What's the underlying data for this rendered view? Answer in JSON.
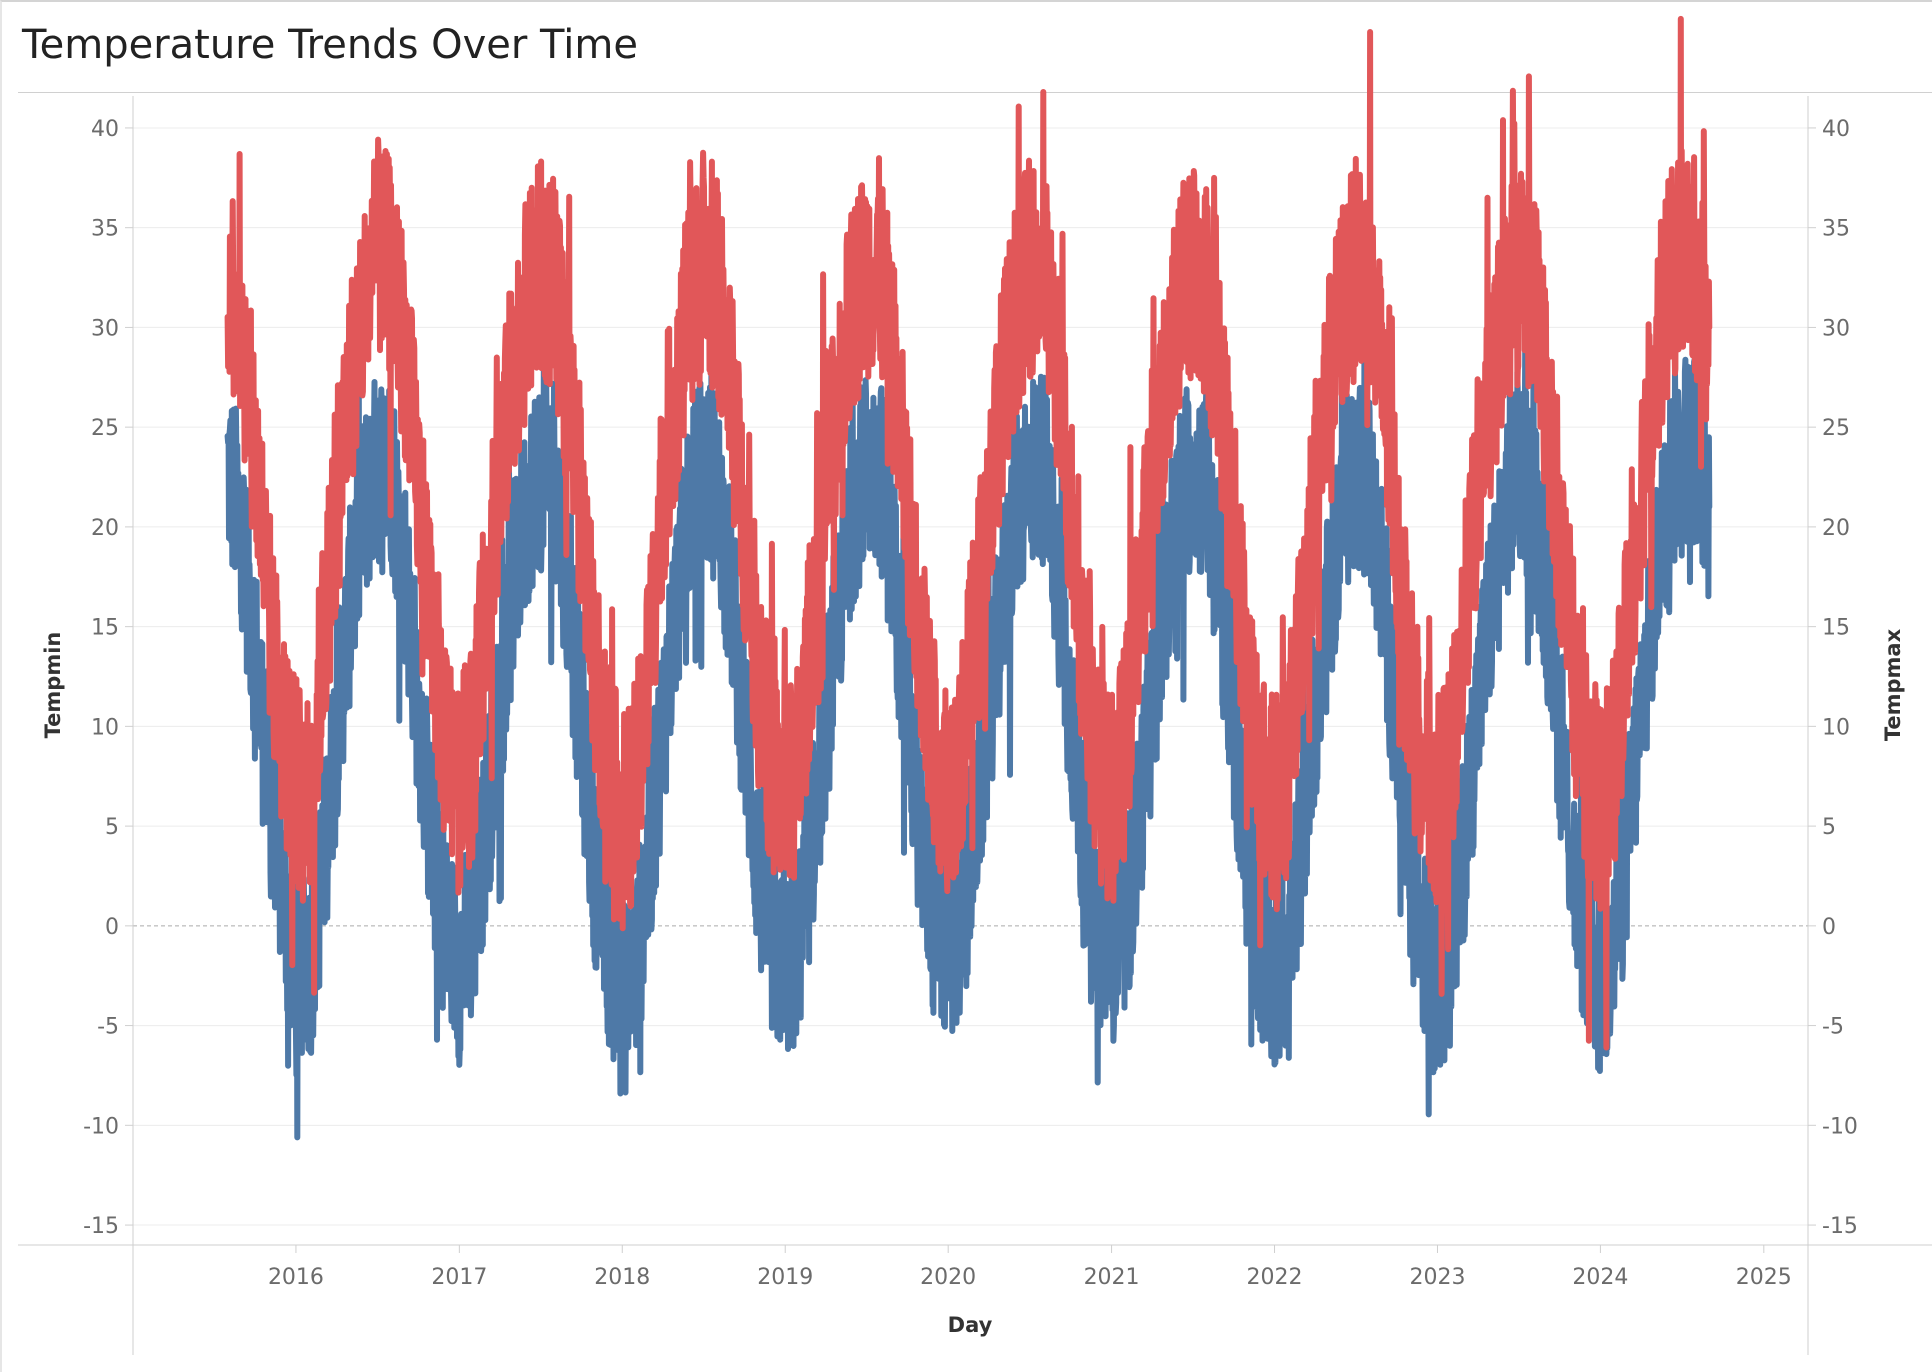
{
  "title": "Temperature Trends Over Time",
  "chart_data": {
    "type": "line",
    "title": "Temperature Trends Over Time",
    "xlabel": "Day",
    "ylabel_left": "Tempmin",
    "ylabel_right": "Tempmax",
    "x_ticks": [
      "2016",
      "2017",
      "2018",
      "2019",
      "2020",
      "2021",
      "2022",
      "2023",
      "2024",
      "2025"
    ],
    "y_ticks": [
      40,
      35,
      30,
      25,
      20,
      15,
      10,
      5,
      0,
      -5,
      -10,
      -15
    ],
    "ylim": [
      -16,
      41
    ],
    "xlim": [
      "2015-01-01",
      "2025-03-01"
    ],
    "grid": true,
    "zero_line": "dashed",
    "legend": "none",
    "series": [
      {
        "name": "Tempmax",
        "axis": "right",
        "color": "#e15759",
        "points": [
          [
            "2015-08-01",
            33
          ],
          [
            "2015-09-01",
            30
          ],
          [
            "2015-10-01",
            24
          ],
          [
            "2015-11-01",
            16
          ],
          [
            "2015-12-01",
            10
          ],
          [
            "2016-01-01",
            7
          ],
          [
            "2016-02-01",
            6
          ],
          [
            "2016-03-01",
            14
          ],
          [
            "2016-04-01",
            21
          ],
          [
            "2016-05-01",
            27
          ],
          [
            "2016-06-01",
            31
          ],
          [
            "2016-07-01",
            34
          ],
          [
            "2016-08-01",
            33
          ],
          [
            "2016-09-01",
            29
          ],
          [
            "2016-10-01",
            22
          ],
          [
            "2016-11-01",
            15
          ],
          [
            "2016-12-01",
            9
          ],
          [
            "2017-01-01",
            7
          ],
          [
            "2017-02-01",
            9
          ],
          [
            "2017-03-01",
            16
          ],
          [
            "2017-04-01",
            22
          ],
          [
            "2017-05-01",
            28
          ],
          [
            "2017-06-01",
            31
          ],
          [
            "2017-07-01",
            33
          ],
          [
            "2017-08-01",
            32
          ],
          [
            "2017-09-01",
            27
          ],
          [
            "2017-10-01",
            21
          ],
          [
            "2017-11-01",
            13
          ],
          [
            "2017-12-01",
            8
          ],
          [
            "2018-01-01",
            5
          ],
          [
            "2018-02-01",
            7
          ],
          [
            "2018-03-01",
            13
          ],
          [
            "2018-04-01",
            22
          ],
          [
            "2018-05-01",
            27
          ],
          [
            "2018-06-01",
            31
          ],
          [
            "2018-07-01",
            33
          ],
          [
            "2018-08-01",
            32
          ],
          [
            "2018-09-01",
            27
          ],
          [
            "2018-10-01",
            20
          ],
          [
            "2018-11-01",
            13
          ],
          [
            "2018-12-01",
            8
          ],
          [
            "2019-01-01",
            6
          ],
          [
            "2019-02-01",
            8
          ],
          [
            "2019-03-01",
            15
          ],
          [
            "2019-04-01",
            21
          ],
          [
            "2019-05-01",
            27
          ],
          [
            "2019-06-01",
            31
          ],
          [
            "2019-07-01",
            33
          ],
          [
            "2019-08-01",
            33
          ],
          [
            "2019-09-01",
            28
          ],
          [
            "2019-10-01",
            21
          ],
          [
            "2019-11-01",
            14
          ],
          [
            "2019-12-01",
            9
          ],
          [
            "2020-01-01",
            7
          ],
          [
            "2020-02-01",
            9
          ],
          [
            "2020-03-01",
            15
          ],
          [
            "2020-04-01",
            21
          ],
          [
            "2020-05-01",
            27
          ],
          [
            "2020-06-01",
            31
          ],
          [
            "2020-07-01",
            33
          ],
          [
            "2020-08-01",
            33
          ],
          [
            "2020-09-01",
            28
          ],
          [
            "2020-10-01",
            21
          ],
          [
            "2020-11-01",
            13
          ],
          [
            "2020-12-01",
            8
          ],
          [
            "2021-01-01",
            6
          ],
          [
            "2021-02-01",
            9
          ],
          [
            "2021-03-01",
            16
          ],
          [
            "2021-04-01",
            22
          ],
          [
            "2021-05-01",
            27
          ],
          [
            "2021-06-01",
            31
          ],
          [
            "2021-07-01",
            33
          ],
          [
            "2021-08-01",
            32
          ],
          [
            "2021-09-01",
            27
          ],
          [
            "2021-10-01",
            20
          ],
          [
            "2021-11-01",
            13
          ],
          [
            "2021-12-01",
            8
          ],
          [
            "2022-01-01",
            6
          ],
          [
            "2022-02-01",
            8
          ],
          [
            "2022-03-01",
            15
          ],
          [
            "2022-04-01",
            22
          ],
          [
            "2022-05-01",
            27
          ],
          [
            "2022-06-01",
            31
          ],
          [
            "2022-07-01",
            33
          ],
          [
            "2022-08-01",
            32
          ],
          [
            "2022-09-01",
            27
          ],
          [
            "2022-10-01",
            20
          ],
          [
            "2022-11-01",
            13
          ],
          [
            "2022-12-01",
            8
          ],
          [
            "2023-01-01",
            6
          ],
          [
            "2023-02-01",
            8
          ],
          [
            "2023-03-01",
            15
          ],
          [
            "2023-04-01",
            22
          ],
          [
            "2023-05-01",
            27
          ],
          [
            "2023-06-01",
            31
          ],
          [
            "2023-07-01",
            33
          ],
          [
            "2023-08-01",
            32
          ],
          [
            "2023-09-01",
            27
          ],
          [
            "2023-10-01",
            20
          ],
          [
            "2023-11-01",
            13
          ],
          [
            "2023-12-01",
            8
          ],
          [
            "2024-01-01",
            6
          ],
          [
            "2024-02-01",
            8
          ],
          [
            "2024-03-01",
            15
          ],
          [
            "2024-04-01",
            22
          ],
          [
            "2024-05-01",
            28
          ],
          [
            "2024-06-01",
            32
          ],
          [
            "2024-07-01",
            34
          ],
          [
            "2024-08-01",
            33
          ],
          [
            "2024-09-01",
            30
          ]
        ]
      },
      {
        "name": "Tempmin",
        "axis": "left",
        "color": "#4e79a7",
        "points": [
          [
            "2015-08-01",
            23
          ],
          [
            "2015-09-01",
            20
          ],
          [
            "2015-10-01",
            14
          ],
          [
            "2015-11-01",
            7
          ],
          [
            "2015-12-01",
            2
          ],
          [
            "2016-01-01",
            -3
          ],
          [
            "2016-02-01",
            -2
          ],
          [
            "2016-03-01",
            3
          ],
          [
            "2016-04-01",
            10
          ],
          [
            "2016-05-01",
            16
          ],
          [
            "2016-06-01",
            21
          ],
          [
            "2016-07-01",
            23
          ],
          [
            "2016-08-01",
            23
          ],
          [
            "2016-09-01",
            18
          ],
          [
            "2016-10-01",
            11
          ],
          [
            "2016-11-01",
            4
          ],
          [
            "2016-12-01",
            0
          ],
          [
            "2017-01-01",
            -2
          ],
          [
            "2017-02-01",
            0
          ],
          [
            "2017-03-01",
            5
          ],
          [
            "2017-04-01",
            11
          ],
          [
            "2017-05-01",
            17
          ],
          [
            "2017-06-01",
            21
          ],
          [
            "2017-07-01",
            23
          ],
          [
            "2017-08-01",
            23
          ],
          [
            "2017-09-01",
            17
          ],
          [
            "2017-10-01",
            10
          ],
          [
            "2017-11-01",
            3
          ],
          [
            "2017-12-01",
            -1
          ],
          [
            "2018-01-01",
            -4
          ],
          [
            "2018-02-01",
            -2
          ],
          [
            "2018-03-01",
            3
          ],
          [
            "2018-04-01",
            10
          ],
          [
            "2018-05-01",
            16
          ],
          [
            "2018-06-01",
            21
          ],
          [
            "2018-07-01",
            23
          ],
          [
            "2018-08-01",
            22
          ],
          [
            "2018-09-01",
            17
          ],
          [
            "2018-10-01",
            10
          ],
          [
            "2018-11-01",
            3
          ],
          [
            "2018-12-01",
            -1
          ],
          [
            "2019-01-01",
            -2
          ],
          [
            "2019-02-01",
            -1
          ],
          [
            "2019-03-01",
            4
          ],
          [
            "2019-04-01",
            10
          ],
          [
            "2019-05-01",
            16
          ],
          [
            "2019-06-01",
            21
          ],
          [
            "2019-07-01",
            23
          ],
          [
            "2019-08-01",
            23
          ],
          [
            "2019-09-01",
            18
          ],
          [
            "2019-10-01",
            11
          ],
          [
            "2019-11-01",
            4
          ],
          [
            "2019-12-01",
            0
          ],
          [
            "2020-01-01",
            -1
          ],
          [
            "2020-02-01",
            0
          ],
          [
            "2020-03-01",
            5
          ],
          [
            "2020-04-01",
            11
          ],
          [
            "2020-05-01",
            16
          ],
          [
            "2020-06-01",
            21
          ],
          [
            "2020-07-01",
            23
          ],
          [
            "2020-08-01",
            23
          ],
          [
            "2020-09-01",
            18
          ],
          [
            "2020-10-01",
            11
          ],
          [
            "2020-11-01",
            4
          ],
          [
            "2020-12-01",
            0
          ],
          [
            "2021-01-01",
            -1
          ],
          [
            "2021-02-01",
            0
          ],
          [
            "2021-03-01",
            5
          ],
          [
            "2021-04-01",
            11
          ],
          [
            "2021-05-01",
            17
          ],
          [
            "2021-06-01",
            21
          ],
          [
            "2021-07-01",
            23
          ],
          [
            "2021-08-01",
            22
          ],
          [
            "2021-09-01",
            17
          ],
          [
            "2021-10-01",
            10
          ],
          [
            "2021-11-01",
            3
          ],
          [
            "2021-12-01",
            -1
          ],
          [
            "2022-01-01",
            -3
          ],
          [
            "2022-02-01",
            -1
          ],
          [
            "2022-03-01",
            4
          ],
          [
            "2022-04-01",
            11
          ],
          [
            "2022-05-01",
            16
          ],
          [
            "2022-06-01",
            21
          ],
          [
            "2022-07-01",
            23
          ],
          [
            "2022-08-01",
            22
          ],
          [
            "2022-09-01",
            17
          ],
          [
            "2022-10-01",
            10
          ],
          [
            "2022-11-01",
            3
          ],
          [
            "2022-12-01",
            -1
          ],
          [
            "2023-01-01",
            -3
          ],
          [
            "2023-02-01",
            -1
          ],
          [
            "2023-03-01",
            4
          ],
          [
            "2023-04-01",
            11
          ],
          [
            "2023-05-01",
            16
          ],
          [
            "2023-06-01",
            21
          ],
          [
            "2023-07-01",
            23
          ],
          [
            "2023-08-01",
            22
          ],
          [
            "2023-09-01",
            17
          ],
          [
            "2023-10-01",
            10
          ],
          [
            "2023-11-01",
            3
          ],
          [
            "2023-12-01",
            -1
          ],
          [
            "2024-01-01",
            -3
          ],
          [
            "2024-02-01",
            -1
          ],
          [
            "2024-03-01",
            4
          ],
          [
            "2024-04-01",
            11
          ],
          [
            "2024-05-01",
            17
          ],
          [
            "2024-06-01",
            22
          ],
          [
            "2024-07-01",
            24
          ],
          [
            "2024-08-01",
            24
          ],
          [
            "2024-09-01",
            21
          ]
        ]
      }
    ]
  }
}
